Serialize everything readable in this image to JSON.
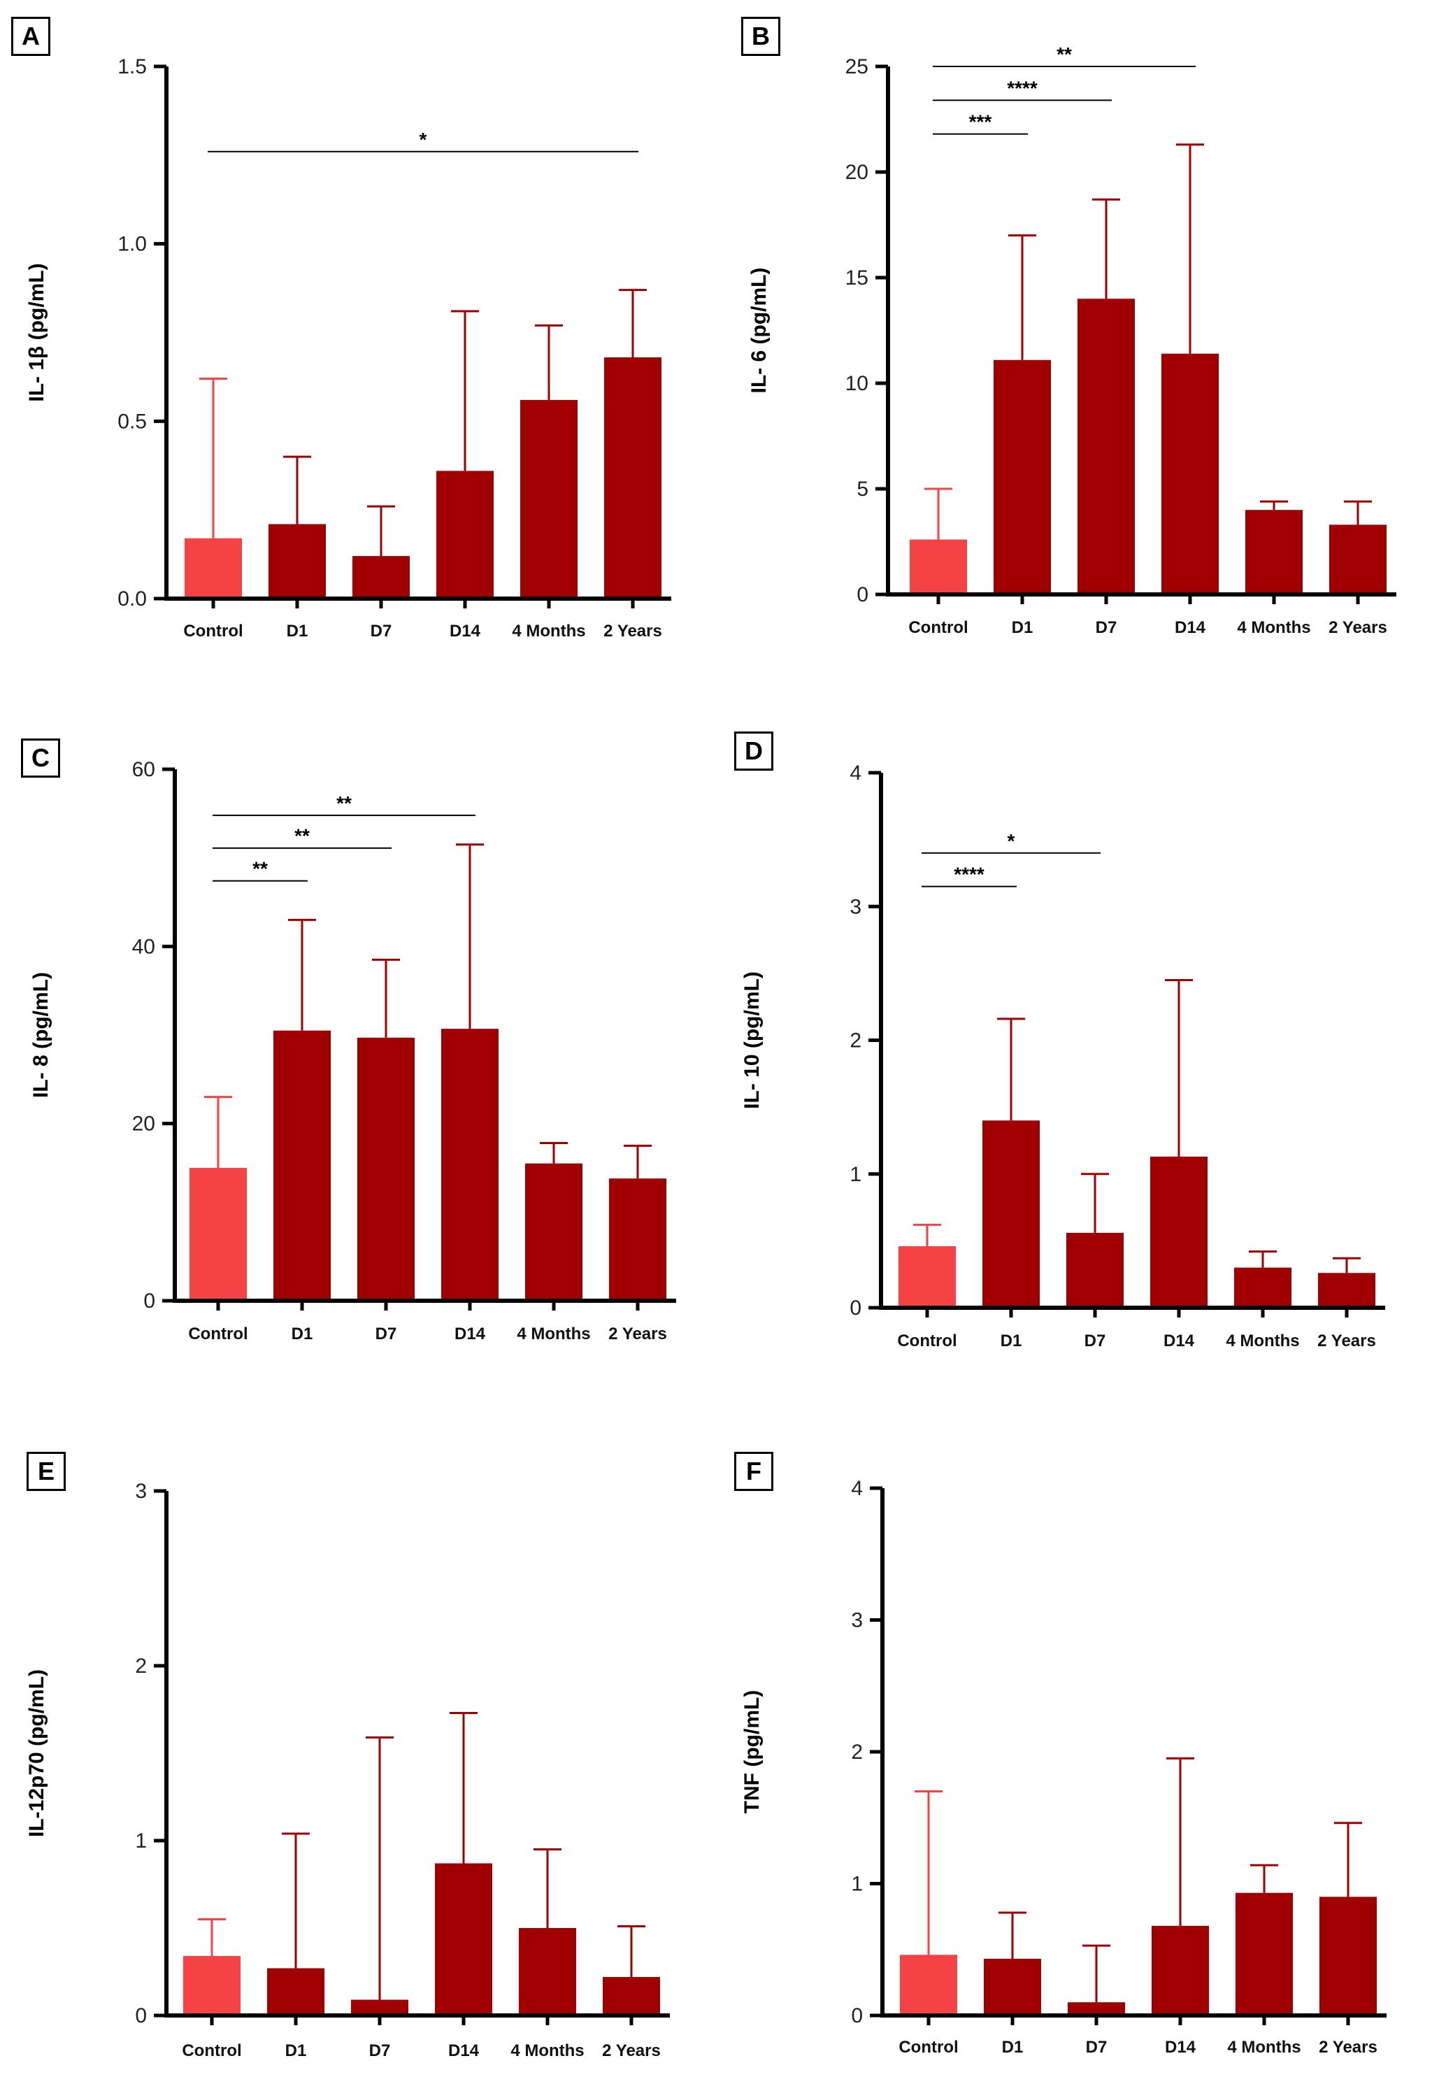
{
  "colors": {
    "control": "#f54245",
    "bar": "#a00000",
    "axis": "#000000",
    "sig_line": "#000000"
  },
  "chart_data": [
    {
      "panel": "A",
      "type": "bar",
      "ylabel": "IL- 1β (pg/mL)",
      "categories": [
        "Control",
        "D1",
        "D7",
        "D14",
        "4 Months",
        "2 Years"
      ],
      "values": [
        0.17,
        0.21,
        0.12,
        0.36,
        0.56,
        0.68
      ],
      "errors_upper": [
        0.62,
        0.4,
        0.26,
        0.81,
        0.77,
        0.87
      ],
      "ylim": [
        0,
        1.5
      ],
      "yticks": [
        0.0,
        0.5,
        1.0,
        1.5
      ],
      "ytick_labels": [
        "0.0",
        "0.5",
        "1.0",
        "1.5"
      ],
      "significance": [
        {
          "from": 0,
          "to": 5,
          "y": 1.26,
          "label": "*"
        }
      ]
    },
    {
      "panel": "B",
      "type": "bar",
      "ylabel": "IL- 6 (pg/mL)",
      "categories": [
        "Control",
        "D1",
        "D7",
        "D14",
        "4 Months",
        "2 Years"
      ],
      "values": [
        2.6,
        11.1,
        14.0,
        11.4,
        4.0,
        3.3
      ],
      "errors_upper": [
        5.0,
        17.0,
        18.7,
        21.3,
        4.4,
        4.4
      ],
      "ylim": [
        0,
        25
      ],
      "yticks": [
        0,
        5,
        10,
        15,
        20,
        25
      ],
      "ytick_labels": [
        "0",
        "5",
        "10",
        "15",
        "20",
        "25"
      ],
      "significance": [
        {
          "from": 0,
          "to": 3,
          "y": 25.0,
          "label": "**"
        },
        {
          "from": 0,
          "to": 2,
          "y": 23.4,
          "label": "****"
        },
        {
          "from": 0,
          "to": 1,
          "y": 21.8,
          "label": "***"
        }
      ]
    },
    {
      "panel": "C",
      "type": "bar",
      "ylabel": "IL- 8 (pg/mL)",
      "categories": [
        "Control",
        "D1",
        "D7",
        "D14",
        "4 Months",
        "2 Years"
      ],
      "values": [
        15.0,
        30.5,
        29.7,
        30.7,
        15.5,
        13.8
      ],
      "errors_upper": [
        23.0,
        43.0,
        38.5,
        51.5,
        17.8,
        17.5
      ],
      "ylim": [
        0,
        60
      ],
      "yticks": [
        0,
        20,
        40,
        60
      ],
      "ytick_labels": [
        "0",
        "20",
        "40",
        "60"
      ],
      "significance": [
        {
          "from": 0,
          "to": 3,
          "y": 54.8,
          "label": "**"
        },
        {
          "from": 0,
          "to": 2,
          "y": 51.1,
          "label": "**"
        },
        {
          "from": 0,
          "to": 1,
          "y": 47.4,
          "label": "**"
        }
      ]
    },
    {
      "panel": "D",
      "type": "bar",
      "ylabel": "IL- 10 (pg/mL)",
      "categories": [
        "Control",
        "D1",
        "D7",
        "D14",
        "4 Months",
        "2 Years"
      ],
      "values": [
        0.46,
        1.4,
        0.56,
        1.13,
        0.3,
        0.26
      ],
      "errors_upper": [
        0.62,
        2.16,
        1.0,
        2.45,
        0.42,
        0.37
      ],
      "ylim": [
        0,
        4
      ],
      "yticks": [
        0,
        1,
        2,
        3,
        4
      ],
      "ytick_labels": [
        "0",
        "1",
        "2",
        "3",
        "4"
      ],
      "significance": [
        {
          "from": 0,
          "to": 2,
          "y": 3.4,
          "label": "*"
        },
        {
          "from": 0,
          "to": 1,
          "y": 3.15,
          "label": "****"
        }
      ]
    },
    {
      "panel": "E",
      "type": "bar",
      "ylabel": "IL-12p70 (pg/mL)",
      "categories": [
        "Control",
        "D1",
        "D7",
        "D14",
        "4 Months",
        "2 Years"
      ],
      "values": [
        0.34,
        0.27,
        0.09,
        0.87,
        0.5,
        0.22
      ],
      "errors_upper": [
        0.55,
        1.04,
        1.59,
        1.73,
        0.95,
        0.51
      ],
      "ylim": [
        0,
        3
      ],
      "yticks": [
        0,
        1,
        2,
        3
      ],
      "ytick_labels": [
        "0",
        "1",
        "2",
        "3"
      ],
      "significance": []
    },
    {
      "panel": "F",
      "type": "bar",
      "ylabel": "TNF (pg/mL)",
      "categories": [
        "Control",
        "D1",
        "D7",
        "D14",
        "4 Months",
        "2 Years"
      ],
      "values": [
        0.46,
        0.43,
        0.1,
        0.68,
        0.93,
        0.9
      ],
      "errors_upper": [
        1.7,
        0.78,
        0.53,
        1.95,
        1.14,
        1.46
      ],
      "ylim": [
        0,
        4
      ],
      "yticks": [
        0,
        1,
        2,
        3,
        4
      ],
      "ytick_labels": [
        "0",
        "1",
        "2",
        "3",
        "4"
      ],
      "significance": []
    }
  ]
}
